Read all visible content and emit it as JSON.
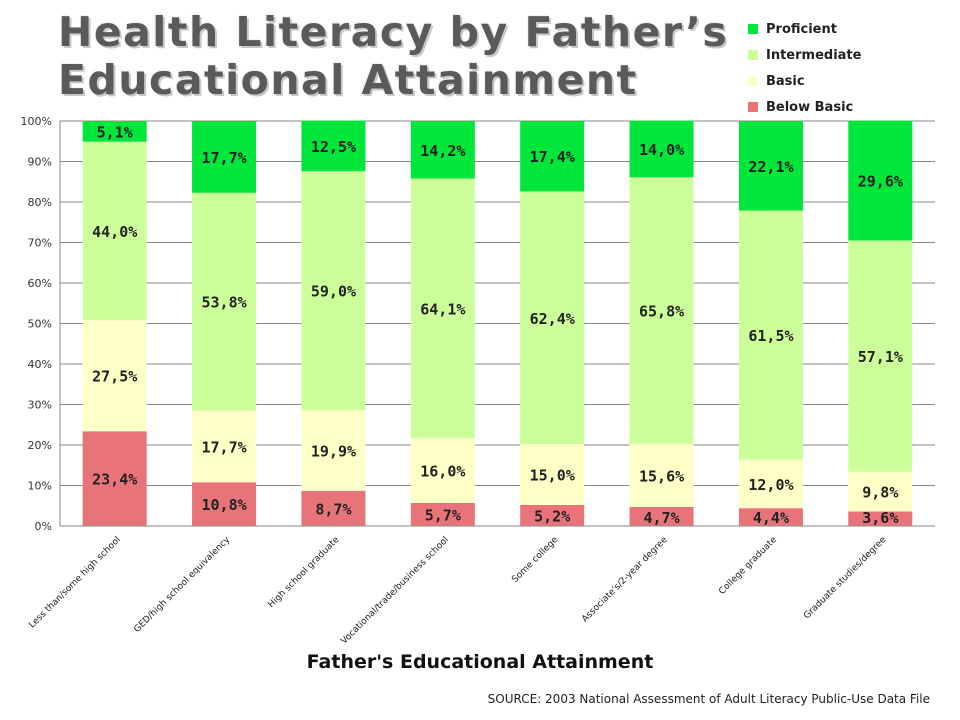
{
  "title": {
    "line1": "Health Literacy by Father’s",
    "line2": "Educational Attainment"
  },
  "source": "SOURCE: 2003 National Assessment of Adult Literacy Public-Use Data File",
  "colors": {
    "below_basic": "#e8747a",
    "basic": "#ffffc8",
    "intermediate": "#ccff99",
    "proficient": "#00e63a"
  },
  "chart_data": {
    "type": "bar",
    "stacked": true,
    "title": "Health Literacy by Father’s Educational Attainment",
    "xlabel": "Father's Educational Attainment",
    "ylabel": "",
    "ylim": [
      0,
      100
    ],
    "yticks": [
      "0%",
      "10%",
      "20%",
      "30%",
      "40%",
      "50%",
      "60%",
      "70%",
      "80%",
      "90%",
      "100%"
    ],
    "grid": true,
    "legend_position": "top-right",
    "categories": [
      "Less than/some high school",
      "GED/high school equivalency",
      "High school graduate",
      "Vocational/trade/business school",
      "Some college",
      "Associate's/2-year degree",
      "College graduate",
      "Graduate studies/degree"
    ],
    "series": [
      {
        "name": "Below Basic",
        "color_key": "below_basic",
        "values": [
          23.4,
          10.8,
          8.7,
          5.7,
          5.2,
          4.7,
          4.4,
          3.6
        ],
        "labels": [
          "23,4%",
          "10,8%",
          "8,7%",
          "5,7%",
          "5,2%",
          "4,7%",
          "4,4%",
          "3,6%"
        ]
      },
      {
        "name": "Basic",
        "color_key": "basic",
        "values": [
          27.5,
          17.7,
          19.9,
          16.0,
          15.0,
          15.6,
          12.0,
          9.8
        ],
        "labels": [
          "27,5%",
          "17,7%",
          "19,9%",
          "16,0%",
          "15,0%",
          "15,6%",
          "12,0%",
          "9,8%"
        ]
      },
      {
        "name": "Intermediate",
        "color_key": "intermediate",
        "values": [
          44.0,
          53.8,
          59.0,
          64.1,
          62.4,
          65.8,
          61.5,
          57.1
        ],
        "labels": [
          "44,0%",
          "53,8%",
          "59,0%",
          "64,1%",
          "62,4%",
          "65,8%",
          "61,5%",
          "57,1%"
        ]
      },
      {
        "name": "Proficient",
        "color_key": "proficient",
        "values": [
          5.1,
          17.7,
          12.5,
          14.2,
          17.4,
          14.0,
          22.1,
          29.6
        ],
        "labels": [
          "5,1%",
          "17,7%",
          "12,5%",
          "14,2%",
          "17,4%",
          "14,0%",
          "22,1%",
          "29,6%"
        ]
      }
    ],
    "legend_order": [
      "Proficient",
      "Intermediate",
      "Basic",
      "Below Basic"
    ]
  }
}
